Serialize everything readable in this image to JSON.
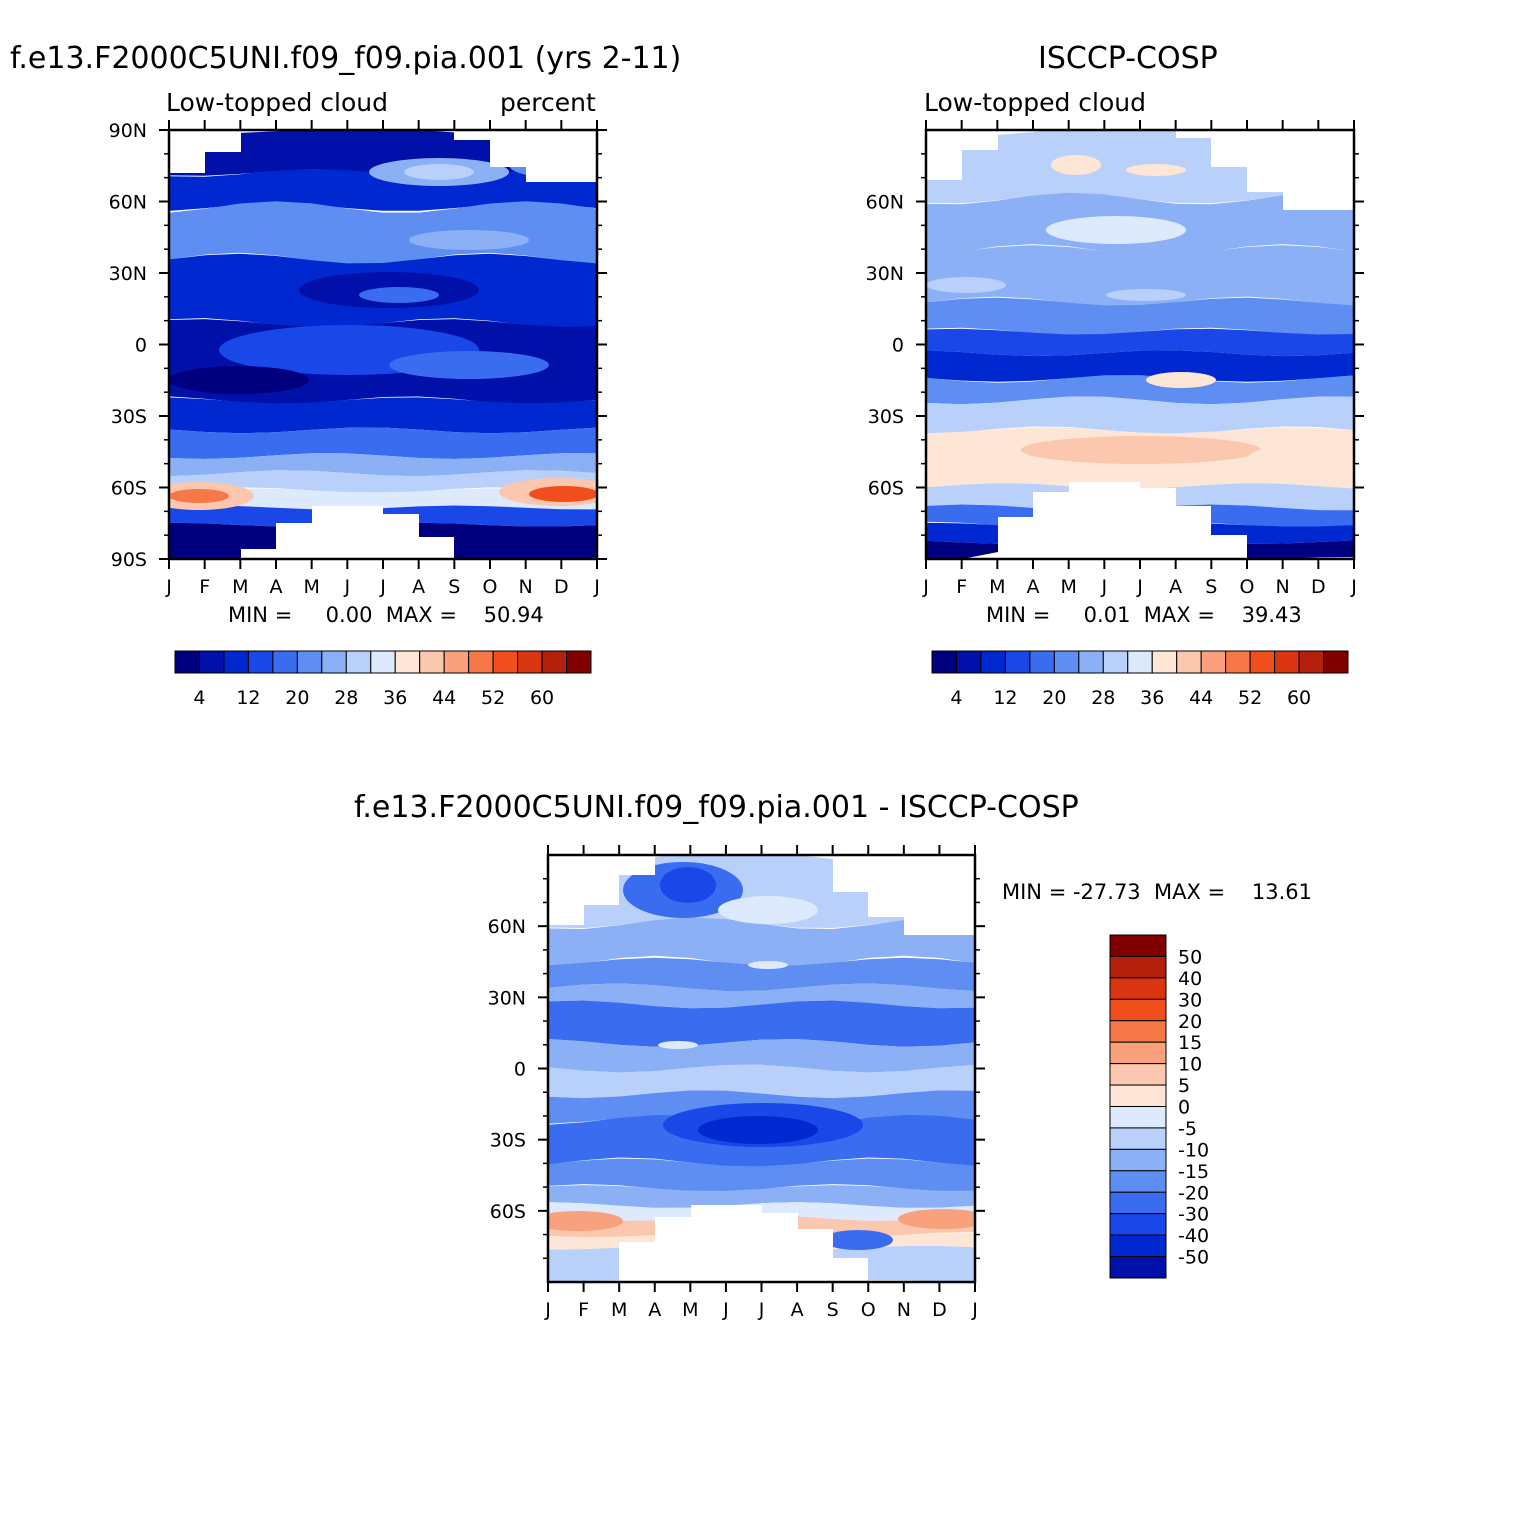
{
  "chart_data": [
    {
      "type": "heatmap",
      "title": "f.e13.F2000C5UNI.f09_f09.pia.001 (yrs 2-11)",
      "subtitle_left": "Low-topped cloud",
      "subtitle_right": "percent",
      "x_tick_labels": [
        "J",
        "F",
        "M",
        "A",
        "M",
        "J",
        "J",
        "A",
        "S",
        "O",
        "N",
        "D",
        "J"
      ],
      "y_tick_labels": [
        "90N",
        "60N",
        "30N",
        "0",
        "30S",
        "60S",
        "90S"
      ],
      "stats": "MIN =     0.00  MAX =    50.94",
      "colorbar": {
        "orientation": "horizontal",
        "levels": [
          4,
          8,
          12,
          16,
          20,
          24,
          28,
          32,
          36,
          40,
          44,
          48,
          52,
          56,
          60
        ],
        "labels": [
          "4",
          "12",
          "20",
          "28",
          "36",
          "44",
          "52",
          "60"
        ]
      }
    },
    {
      "type": "heatmap",
      "title": "ISCCP-COSP",
      "subtitle_left": "Low-topped cloud",
      "x_tick_labels": [
        "J",
        "F",
        "M",
        "A",
        "M",
        "J",
        "J",
        "A",
        "S",
        "O",
        "N",
        "D",
        "J"
      ],
      "y_tick_labels": [
        "60N",
        "30N",
        "0",
        "30S",
        "60S"
      ],
      "stats": "MIN =     0.01  MAX =    39.43",
      "colorbar": {
        "orientation": "horizontal",
        "levels": [
          4,
          8,
          12,
          16,
          20,
          24,
          28,
          32,
          36,
          40,
          44,
          48,
          52,
          56,
          60
        ],
        "labels": [
          "4",
          "12",
          "20",
          "28",
          "36",
          "44",
          "52",
          "60"
        ]
      }
    },
    {
      "type": "heatmap",
      "title": "f.e13.F2000C5UNI.f09_f09.pia.001 - ISCCP-COSP",
      "x_tick_labels": [
        "J",
        "F",
        "M",
        "A",
        "M",
        "J",
        "J",
        "A",
        "S",
        "O",
        "N",
        "D",
        "J"
      ],
      "y_tick_labels": [
        "60N",
        "30N",
        "0",
        "30S",
        "60S"
      ],
      "stats": "MIN = -27.73  MAX =    13.61",
      "colorbar": {
        "orientation": "vertical",
        "levels": [
          50,
          40,
          30,
          20,
          15,
          10,
          5,
          0,
          -5,
          -10,
          -15,
          -20,
          -30,
          -40,
          -50
        ],
        "labels": [
          "50",
          "40",
          "30",
          "20",
          "15",
          "10",
          "5",
          "0",
          "-5",
          "-10",
          "-15",
          "-20",
          "-30",
          "-40",
          "-50"
        ]
      }
    }
  ],
  "palette": [
    "#00007f",
    "#0010a8",
    "#0028d0",
    "#1a48e8",
    "#3a6cf0",
    "#5f8ef2",
    "#8cb0f5",
    "#b8d0fa",
    "#dde9fc",
    "#fde6d6",
    "#fbc7ae",
    "#f9a07c",
    "#f67747",
    "#f04e1d",
    "#d83510",
    "#b4200b",
    "#800000"
  ]
}
